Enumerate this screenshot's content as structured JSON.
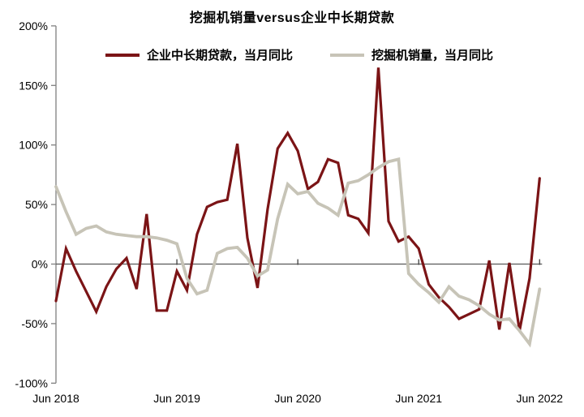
{
  "title": "挖掘机销量versus企业中长期贷款",
  "chart_data": {
    "type": "line",
    "title": "挖掘机销量versus企业中长期贷款",
    "unit": "%",
    "x_axis": {
      "frequency": "monthly",
      "tick_labels": [
        "Jun 2018",
        "Jun 2019",
        "Jun 2020",
        "Jun 2021",
        "Jun 2022"
      ],
      "tick_month_index": [
        0,
        12,
        24,
        36,
        48
      ]
    },
    "y_axis": {
      "min": -100,
      "max": 200,
      "step": 50,
      "tick_labels": [
        "200%",
        "150%",
        "100%",
        "50%",
        "0%",
        "-50%",
        "-100%"
      ],
      "tick_values": [
        200,
        150,
        100,
        50,
        0,
        -50,
        -100
      ]
    },
    "zero_line": true,
    "grid": false,
    "legend_position": "top-center",
    "series": [
      {
        "name": "企业中长期贷款，当月同比",
        "color": "#7B1416",
        "stroke_width": 3.2,
        "values": [
          -31,
          13,
          -6,
          -23,
          -40,
          -19,
          -4,
          5,
          -21,
          42,
          -39,
          -39,
          -6,
          -22,
          25,
          48,
          52,
          54,
          101,
          22,
          -20,
          46,
          97,
          110,
          95,
          63,
          69,
          88,
          85,
          41,
          38,
          26,
          165,
          36,
          19,
          23,
          13,
          -17,
          -28,
          -36,
          -46,
          -42,
          -38,
          3,
          -55,
          1,
          -56,
          -12,
          72
        ]
      },
      {
        "name": "挖掘机销量，当月同比",
        "color": "#C7C4B7",
        "stroke_width": 3.8,
        "values": [
          65,
          44,
          25,
          30,
          32,
          27,
          25,
          24,
          23,
          23,
          22,
          20,
          17,
          -12,
          -25,
          -22,
          9,
          13,
          14,
          5,
          -10,
          -5,
          38,
          67,
          59,
          61,
          51,
          47,
          41,
          68,
          70,
          75,
          81,
          86,
          88,
          -8,
          -17,
          -24,
          -32,
          -19,
          -27,
          -30,
          -35,
          -42,
          -47,
          -46,
          -56,
          -67,
          -21
        ]
      }
    ]
  },
  "colors": {
    "axis_line": "#808080",
    "zero_line": "#595959",
    "tick_mark": "#404040",
    "text": "#000000"
  }
}
